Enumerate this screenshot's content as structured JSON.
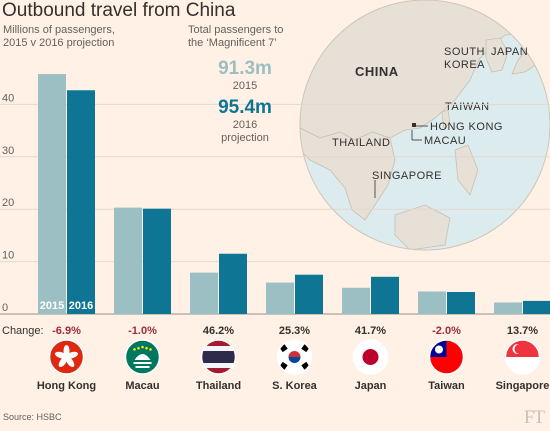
{
  "title": "Outbound travel from China",
  "subtitle_line1": "Millions of passengers,",
  "subtitle_line2": "2015 v 2016 projection",
  "totals": {
    "label_line1": "Total passengers to",
    "label_line2": "the ‘Magnificent 7’",
    "value_2015": "91.3m",
    "label_2015": "2015",
    "value_2016": "95.4m",
    "label_2016_line1": "2016",
    "label_2016_line2": "projection"
  },
  "map": {
    "labels": [
      "CHINA",
      "SOUTH",
      "KOREA",
      "JAPAN",
      "TAIWAN",
      "HONG KONG",
      "MACAU",
      "THAILAND",
      "SINGAPORE"
    ]
  },
  "colors": {
    "background": "#fff1e5",
    "bar_2015": "#9bbfc2",
    "bar_2016": "#0e7694",
    "change_negative": "#a12a3b",
    "ocean": "#ddeef0",
    "land": "#e6e0d6"
  },
  "chart_data": {
    "type": "bar",
    "categories": [
      "Hong Kong",
      "Macau",
      "Thailand",
      "S. Korea",
      "Japan",
      "Taiwan",
      "Singapore"
    ],
    "series": [
      {
        "name": "2015",
        "values": [
          45.8,
          20.3,
          7.9,
          6.0,
          5.0,
          4.3,
          2.2
        ]
      },
      {
        "name": "2016",
        "values": [
          42.7,
          20.1,
          11.5,
          7.5,
          7.1,
          4.2,
          2.5
        ]
      }
    ],
    "ylim": [
      0,
      50
    ],
    "yticks": [
      0,
      10,
      20,
      30,
      40
    ],
    "grid": true,
    "changes_label": "Change:",
    "changes": [
      "-6.9%",
      "-1.0%",
      "46.2%",
      "25.3%",
      "41.7%",
      "-2.0%",
      "13.7%"
    ]
  },
  "source": "Source: HSBC",
  "logo": "FT"
}
